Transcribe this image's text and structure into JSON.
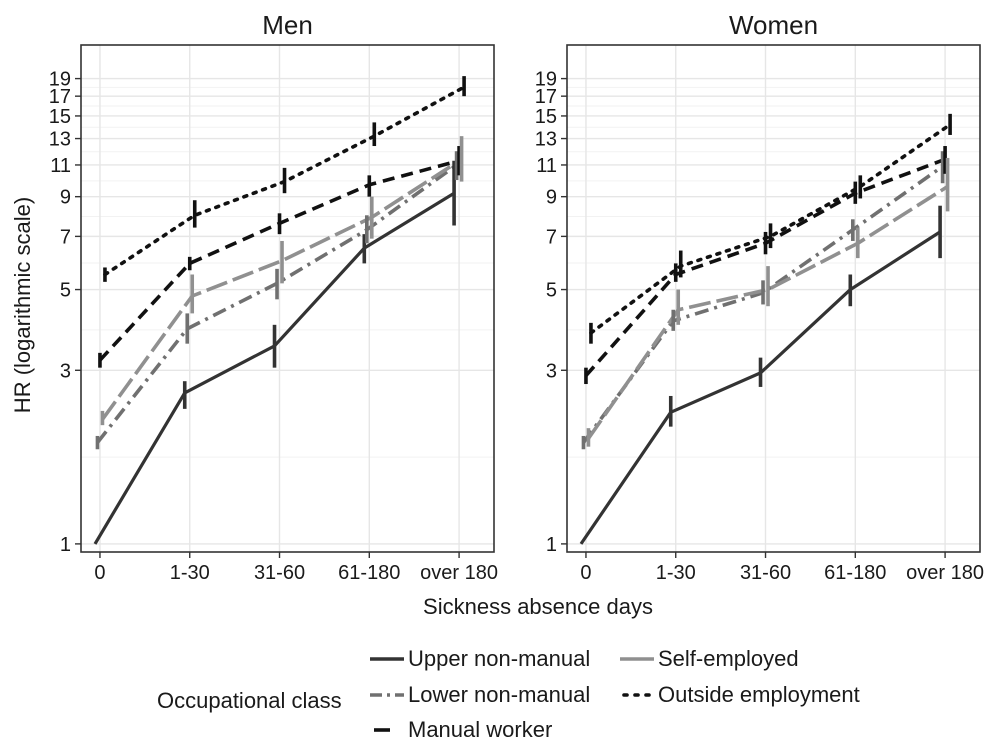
{
  "chart_data": {
    "type": "line",
    "xlabel": "Sickness absence days",
    "ylabel": "HR (logarithmic scale)",
    "y_scale": "log",
    "ylim": [
      0.95,
      23.5
    ],
    "y_ticks": [
      1,
      3,
      5,
      7,
      9,
      11,
      13,
      15,
      17,
      19
    ],
    "categories": [
      "0",
      "1-30",
      "31-60",
      "61-180",
      "over 180"
    ],
    "grid": true,
    "legend": {
      "title": "Occupational class",
      "position": "bottom",
      "entries": [
        "Upper non-manual",
        "Self-employed",
        "Lower non-manual",
        "Outside employment",
        "Manual worker"
      ]
    },
    "panels": [
      {
        "title": "Men",
        "series": [
          {
            "name": "Upper non-manual",
            "values": [
              1.0,
              2.6,
              3.5,
              6.5,
              9.2
            ],
            "lower": [
              1.0,
              2.35,
              3.05,
              5.9,
              7.5
            ],
            "upper": [
              1.0,
              2.8,
              4.0,
              7.1,
              11.3
            ]
          },
          {
            "name": "Lower non-manual",
            "values": [
              1.9,
              3.9,
              5.2,
              7.3,
              11.0
            ],
            "lower": [
              1.82,
              3.55,
              4.7,
              6.7,
              10.0
            ],
            "upper": [
              1.98,
              4.3,
              5.7,
              8.0,
              12.0
            ]
          },
          {
            "name": "Manual worker",
            "values": [
              3.2,
              5.9,
              7.6,
              9.7,
              11.3
            ],
            "lower": [
              3.05,
              5.65,
              7.1,
              9.0,
              10.3
            ],
            "upper": [
              3.35,
              6.15,
              8.1,
              10.3,
              12.4
            ]
          },
          {
            "name": "Self-employed",
            "values": [
              2.2,
              4.8,
              6.0,
              7.9,
              11.4
            ],
            "lower": [
              2.12,
              4.3,
              5.2,
              6.9,
              9.9
            ],
            "upper": [
              2.32,
              5.5,
              6.8,
              9.0,
              13.2
            ]
          },
          {
            "name": "Outside employment",
            "values": [
              5.5,
              8.0,
              9.9,
              13.2,
              18.0
            ],
            "lower": [
              5.25,
              7.4,
              9.2,
              12.4,
              17.0
            ],
            "upper": [
              5.75,
              8.8,
              10.8,
              14.4,
              19.3
            ]
          }
        ]
      },
      {
        "title": "Women",
        "series": [
          {
            "name": "Upper non-manual",
            "values": [
              1.0,
              2.3,
              2.95,
              5.0,
              7.2
            ],
            "lower": [
              1.0,
              2.1,
              2.7,
              4.5,
              6.1
            ],
            "upper": [
              1.0,
              2.55,
              3.25,
              5.5,
              8.5
            ]
          },
          {
            "name": "Lower non-manual",
            "values": [
              1.9,
              4.1,
              4.9,
              7.3,
              10.9
            ],
            "lower": [
              1.82,
              3.85,
              4.55,
              6.8,
              9.8
            ],
            "upper": [
              1.98,
              4.4,
              5.3,
              7.8,
              12.0
            ]
          },
          {
            "name": "Manual worker",
            "values": [
              2.9,
              5.5,
              6.7,
              9.2,
              11.4
            ],
            "lower": [
              2.75,
              5.25,
              6.25,
              8.6,
              10.4
            ],
            "upper": [
              3.05,
              5.9,
              7.2,
              9.9,
              12.4
            ]
          },
          {
            "name": "Self-employed",
            "values": [
              1.95,
              4.4,
              5.0,
              6.7,
              9.6
            ],
            "lower": [
              1.85,
              4.0,
              4.5,
              6.1,
              8.2
            ],
            "upper": [
              2.08,
              5.0,
              5.8,
              7.4,
              11.5
            ]
          },
          {
            "name": "Outside employment",
            "values": [
              3.8,
              5.8,
              7.0,
              9.6,
              14.2
            ],
            "lower": [
              3.55,
              5.4,
              6.5,
              8.9,
              13.3
            ],
            "upper": [
              4.05,
              6.4,
              7.6,
              10.3,
              15.2
            ]
          }
        ]
      }
    ]
  }
}
